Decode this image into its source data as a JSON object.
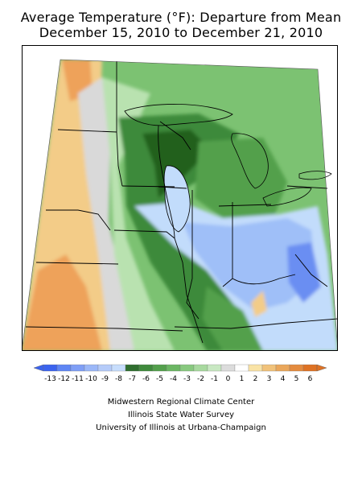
{
  "title_line1": "Average Temperature (°F): Departure from Mean",
  "title_line2": "December 15, 2010 to December 21, 2010",
  "legend": {
    "labels": [
      "-13",
      "-12",
      "-11",
      "-10",
      "-9",
      "-8",
      "-7",
      "-6",
      "-5",
      "-4",
      "-3",
      "-2",
      "-1",
      "0",
      "1",
      "2",
      "3",
      "4",
      "5",
      "6"
    ],
    "colors": [
      "#3b63ee",
      "#5f86f4",
      "#7f9ff6",
      "#9bb7f8",
      "#b5cbf9",
      "#c7ddfc",
      "#2f6e2f",
      "#3f8a3c",
      "#53a04c",
      "#6bb663",
      "#88c97f",
      "#a8d99f",
      "#c8e8c2",
      "#dcdcdc",
      "#ffffff",
      "#f9e3a6",
      "#f1c27a",
      "#eaa75b",
      "#e48b3e",
      "#de7224"
    ]
  },
  "credits": {
    "line1": "Midwestern Regional Climate Center",
    "line2": "Illinois State Water Survey",
    "line3": "University of Illinois at Urbana-Champaign"
  },
  "map_colors": {
    "warm_orange": "#eea25a",
    "warm_light": "#f3cc88",
    "neutral_gray": "#d9d9d9",
    "green_light": "#b9e2b0",
    "green_mid": "#7cc272",
    "green_dark": "#3d8a3a",
    "green_darkest": "#24601f",
    "blue_light": "#c2dcfb",
    "blue_mid": "#9fbff8",
    "blue_dark": "#6a8ef2"
  }
}
